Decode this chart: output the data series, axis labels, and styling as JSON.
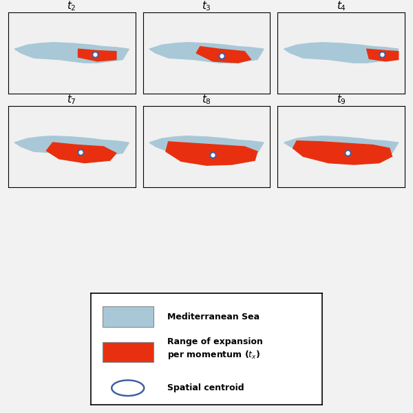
{
  "title": "",
  "background_color": "#f0f0f0",
  "panel_bg_color": "#e8e8e8",
  "map_bg_color": "#f0f0f0",
  "land_color": "#c8c8c8",
  "sea_color": "#a8c8d8",
  "expansion_color": "#e83010",
  "centroid_face": "#ffffff",
  "centroid_edge": "#4060a0",
  "panels": [
    {
      "label": "t",
      "sub": "2",
      "row": 0,
      "col": 0
    },
    {
      "label": "t",
      "sub": "3",
      "row": 0,
      "col": 1
    },
    {
      "label": "t",
      "sub": "4",
      "row": 0,
      "col": 2
    },
    {
      "label": "t",
      "sub": "7",
      "row": 1,
      "col": 0
    },
    {
      "label": "t",
      "sub": "8",
      "row": 1,
      "col": 1
    },
    {
      "label": "t",
      "sub": "9",
      "row": 1,
      "col": 2
    }
  ],
  "legend_items": [
    {
      "type": "rect",
      "color": "#a8c8d8",
      "label": "Mediterranean Sea"
    },
    {
      "type": "rect",
      "color": "#e83010",
      "label": "Range of expansion\nper momentum (tₓ)"
    },
    {
      "type": "circle",
      "color": "#ffffff",
      "edge_color": "#4060a0",
      "label": "Spatial centroid"
    }
  ],
  "figsize": [
    6.0,
    6.0
  ],
  "dpi": 100
}
